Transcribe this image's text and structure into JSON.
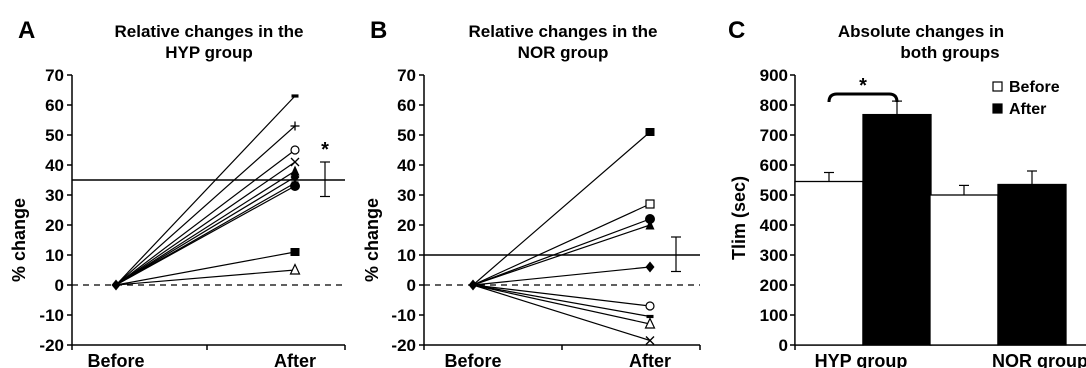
{
  "chart_data": [
    {
      "panel": "A",
      "type": "line",
      "title_lines": [
        "Relative changes in the",
        "HYP group"
      ],
      "xlabel": "",
      "ylabel": "% change",
      "categories": [
        "Before",
        "After"
      ],
      "ylim": [
        -20,
        70
      ],
      "yticks": [
        "70",
        "60",
        "50",
        "40",
        "30",
        "20",
        "10",
        "0",
        "-10",
        "-20"
      ],
      "reference_line": 35,
      "series": [
        {
          "marker": "dash",
          "values": [
            0,
            63
          ]
        },
        {
          "marker": "plus",
          "values": [
            0,
            53
          ]
        },
        {
          "marker": "circle-open",
          "values": [
            0,
            45
          ]
        },
        {
          "marker": "cross",
          "values": [
            0,
            41
          ]
        },
        {
          "marker": "triangle-filled",
          "values": [
            0,
            38
          ]
        },
        {
          "marker": "diamond-filled",
          "values": [
            0,
            36
          ]
        },
        {
          "marker": "dash",
          "values": [
            0,
            34
          ]
        },
        {
          "marker": "circle-filled",
          "values": [
            0,
            33
          ]
        },
        {
          "marker": "square-filled",
          "values": [
            0,
            11
          ]
        },
        {
          "marker": "triangle-open",
          "values": [
            0,
            5
          ]
        }
      ],
      "mean_error": {
        "mean": 35,
        "upper": 41,
        "lower": 29.5
      },
      "significance": "*"
    },
    {
      "panel": "B",
      "type": "line",
      "title_lines": [
        "Relative changes in the",
        "NOR group"
      ],
      "xlabel": "",
      "ylabel": "% change",
      "categories": [
        "Before",
        "After"
      ],
      "ylim": [
        -20,
        70
      ],
      "yticks": [
        "70",
        "60",
        "50",
        "40",
        "30",
        "20",
        "10",
        "0",
        "-10",
        "-20"
      ],
      "reference_line": 10,
      "series": [
        {
          "marker": "square-filled",
          "values": [
            0,
            51
          ]
        },
        {
          "marker": "square-open",
          "values": [
            0,
            27
          ]
        },
        {
          "marker": "circle-filled",
          "values": [
            0,
            22
          ]
        },
        {
          "marker": "triangle-filled",
          "values": [
            0,
            20
          ]
        },
        {
          "marker": "diamond-filled",
          "values": [
            0,
            6
          ]
        },
        {
          "marker": "circle-open",
          "values": [
            0,
            -7
          ]
        },
        {
          "marker": "dash",
          "values": [
            0,
            -10.5
          ]
        },
        {
          "marker": "triangle-open",
          "values": [
            0,
            -13
          ]
        },
        {
          "marker": "cross",
          "values": [
            0,
            -18.5
          ]
        }
      ],
      "mean_error": {
        "mean": 10,
        "upper": 16,
        "lower": 4.5
      }
    },
    {
      "panel": "C",
      "type": "bar",
      "title_lines": [
        "Absolute changes in",
        "both groups"
      ],
      "xlabel": "",
      "ylabel": "Tlim (sec)",
      "categories": [
        "HYP group",
        "NOR  group"
      ],
      "ylim": [
        0,
        900
      ],
      "yticks": [
        "900",
        "800",
        "700",
        "600",
        "500",
        "400",
        "300",
        "200",
        "100",
        "0"
      ],
      "series": [
        {
          "name": "Before",
          "color": "#ffffff",
          "values": [
            545,
            500
          ],
          "errors": [
            30,
            32
          ]
        },
        {
          "name": "After",
          "color": "#000000",
          "values": [
            768,
            535
          ],
          "errors": [
            45,
            45
          ]
        }
      ],
      "legend": "top-right",
      "significance": "*"
    }
  ]
}
